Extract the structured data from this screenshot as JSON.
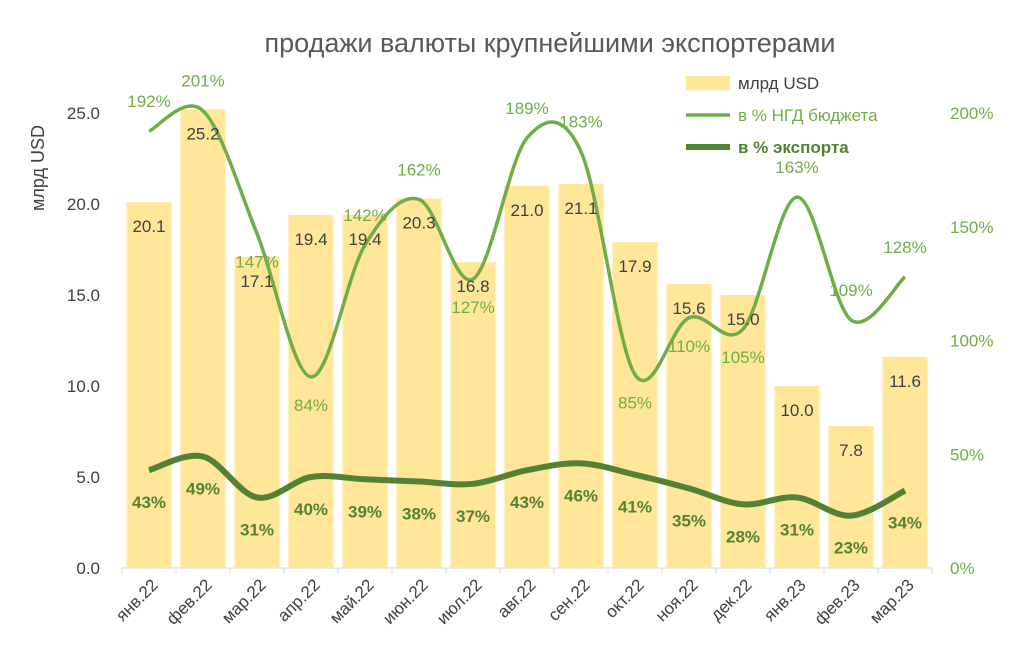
{
  "chart_data": {
    "type": "bar+line",
    "title": "продажи валюты крупнейшими экспортерами",
    "ylabel": "млрд USD",
    "ylim": [
      0,
      25
    ],
    "yticks": [
      "0.0",
      "5.0",
      "10.0",
      "15.0",
      "20.0",
      "25.0"
    ],
    "y2lim": [
      0,
      2
    ],
    "y2ticks": [
      "0%",
      "50%",
      "100%",
      "150%",
      "200%"
    ],
    "categories": [
      "янв.22",
      "фев.22",
      "мар.22",
      "апр.22",
      "май.22",
      "июн.22",
      "июл.22",
      "авг.22",
      "сен.22",
      "окт.22",
      "ноя.22",
      "дек.22",
      "янв.23",
      "фев.23",
      "мар.23"
    ],
    "series": [
      {
        "name": "млрд USD",
        "kind": "bar",
        "axis": "left",
        "color": "#FFE699",
        "values": [
          20.1,
          25.2,
          17.1,
          19.4,
          19.4,
          20.3,
          16.8,
          21.0,
          21.1,
          17.9,
          15.6,
          15.0,
          10.0,
          7.8,
          11.6
        ],
        "labels": [
          "20.1",
          "25.2",
          "17.1",
          "19.4",
          "19.4",
          "20.3",
          "16.8",
          "21.0",
          "21.1",
          "17.9",
          "15.6",
          "15.0",
          "10.0",
          "7.8",
          "11.6"
        ]
      },
      {
        "name": "в % НГД бюджета",
        "kind": "line",
        "axis": "right",
        "color": "#70AD47",
        "values": [
          1.92,
          2.01,
          1.47,
          0.84,
          1.42,
          1.62,
          1.27,
          1.89,
          1.83,
          0.85,
          1.1,
          1.05,
          1.63,
          1.09,
          1.28
        ],
        "labels": [
          "192%",
          "201%",
          "147%",
          "84%",
          "142%",
          "162%",
          "127%",
          "189%",
          "183%",
          "85%",
          "110%",
          "105%",
          "163%",
          "109%",
          "128%"
        ]
      },
      {
        "name": "в % экспорта",
        "kind": "line",
        "axis": "right",
        "color": "#548235",
        "values": [
          0.43,
          0.49,
          0.31,
          0.4,
          0.39,
          0.38,
          0.37,
          0.43,
          0.46,
          0.41,
          0.35,
          0.28,
          0.31,
          0.23,
          0.34
        ],
        "labels": [
          "43%",
          "49%",
          "31%",
          "40%",
          "39%",
          "38%",
          "37%",
          "43%",
          "46%",
          "41%",
          "35%",
          "28%",
          "31%",
          "23%",
          "34%"
        ]
      }
    ],
    "legend_position": "top-right"
  }
}
